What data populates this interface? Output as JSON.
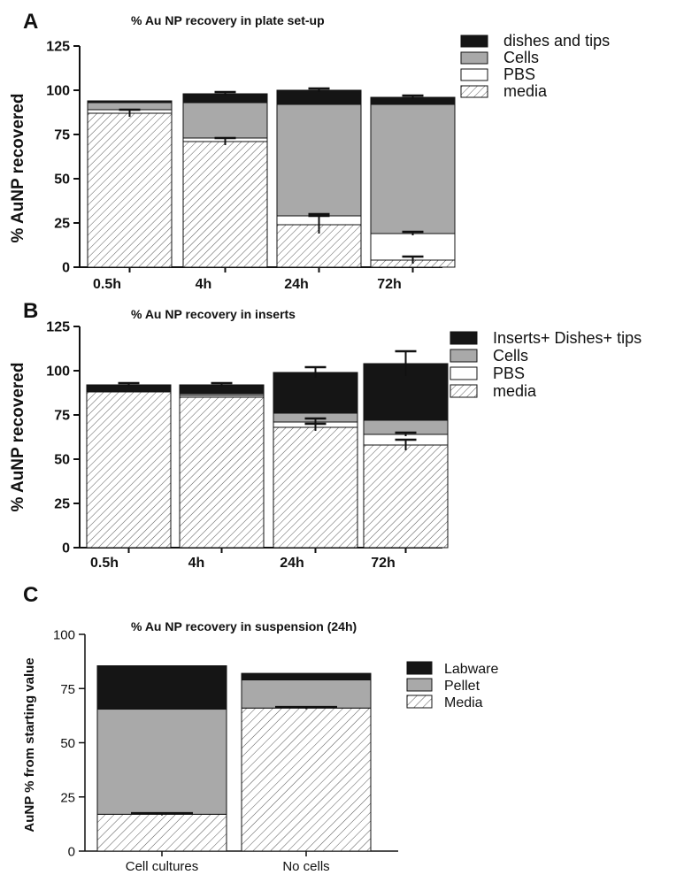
{
  "chart_data": [
    {
      "panel": "A",
      "type": "bar",
      "stacked": true,
      "title": "% Au NP recovery in plate set-up",
      "ylabel": "% AuNP recovered",
      "xlabel": "",
      "ylim": [
        0,
        125
      ],
      "yticks": [
        "0",
        "25",
        "50",
        "75",
        "100",
        "125"
      ],
      "categories": [
        "0.5h",
        "4h",
        "24h",
        "72h"
      ],
      "legend_position": "top-right",
      "series": [
        {
          "name": "media",
          "pattern": "hatch",
          "color": "#ffffff",
          "values": [
            87,
            71,
            24,
            4
          ],
          "error": [
            2,
            2,
            5,
            2
          ]
        },
        {
          "name": "PBS",
          "pattern": "solid",
          "color": "#ffffff",
          "values": [
            2,
            2,
            5,
            15
          ],
          "error": [
            0,
            0,
            1,
            1
          ]
        },
        {
          "name": "Cells",
          "pattern": "solid",
          "color": "#a9a9a9",
          "values": [
            4,
            20,
            63,
            73
          ],
          "error": [
            0,
            0,
            0,
            0
          ]
        },
        {
          "name": "dishes and tips",
          "pattern": "solid",
          "color": "#151515",
          "values": [
            1,
            5,
            8,
            4
          ],
          "error": [
            0,
            1,
            1,
            1
          ]
        }
      ],
      "legend_order": [
        "dishes and tips",
        "Cells",
        "PBS",
        "media"
      ]
    },
    {
      "panel": "B",
      "type": "bar",
      "stacked": true,
      "title": "% Au NP recovery in inserts",
      "ylabel": "% AuNP recovered",
      "xlabel": "",
      "ylim": [
        0,
        125
      ],
      "yticks": [
        "0",
        "25",
        "50",
        "75",
        "100",
        "125"
      ],
      "categories": [
        "0.5h",
        "4h",
        "24h",
        "72h"
      ],
      "legend_position": "top-right",
      "series": [
        {
          "name": "media",
          "pattern": "hatch",
          "color": "#ffffff",
          "values": [
            88,
            85,
            68,
            58
          ],
          "error": [
            0,
            0,
            2,
            3
          ]
        },
        {
          "name": "PBS",
          "pattern": "solid",
          "color": "#ffffff",
          "values": [
            0,
            1,
            3,
            6
          ],
          "error": [
            0,
            0,
            2,
            1
          ]
        },
        {
          "name": "Cells",
          "pattern": "solid",
          "color": "#a9a9a9",
          "values": [
            0,
            1,
            5,
            8
          ],
          "error": [
            0,
            0,
            0,
            0
          ]
        },
        {
          "name": "Inserts+ Dishes+ tips",
          "pattern": "solid",
          "color": "#151515",
          "values": [
            4,
            5,
            23,
            32
          ],
          "error": [
            1,
            1,
            3,
            7
          ]
        }
      ],
      "legend_order": [
        "Inserts+ Dishes+ tips",
        "Cells",
        "PBS",
        "media"
      ]
    },
    {
      "panel": "C",
      "type": "bar",
      "stacked": true,
      "title": "% Au NP recovery in suspension (24h)",
      "ylabel": "AuNP % from starting value",
      "xlabel": "",
      "ylim": [
        0,
        100
      ],
      "yticks": [
        "0",
        "25",
        "50",
        "75",
        "100"
      ],
      "categories": [
        "Cell cultures",
        "No cells"
      ],
      "legend_position": "top-right",
      "series": [
        {
          "name": "Media",
          "pattern": "hatch",
          "color": "#ffffff",
          "values": [
            17,
            66
          ],
          "error": [
            0.5,
            0.5
          ]
        },
        {
          "name": "Pellet",
          "pattern": "solid",
          "color": "#a9a9a9",
          "values": [
            48.5,
            13
          ],
          "error": [
            0,
            0
          ]
        },
        {
          "name": "Labware",
          "pattern": "solid",
          "color": "#151515",
          "values": [
            20,
            3
          ],
          "error": [
            0,
            0
          ]
        }
      ],
      "legend_order": [
        "Labware",
        "Pellet",
        "Media"
      ]
    }
  ]
}
